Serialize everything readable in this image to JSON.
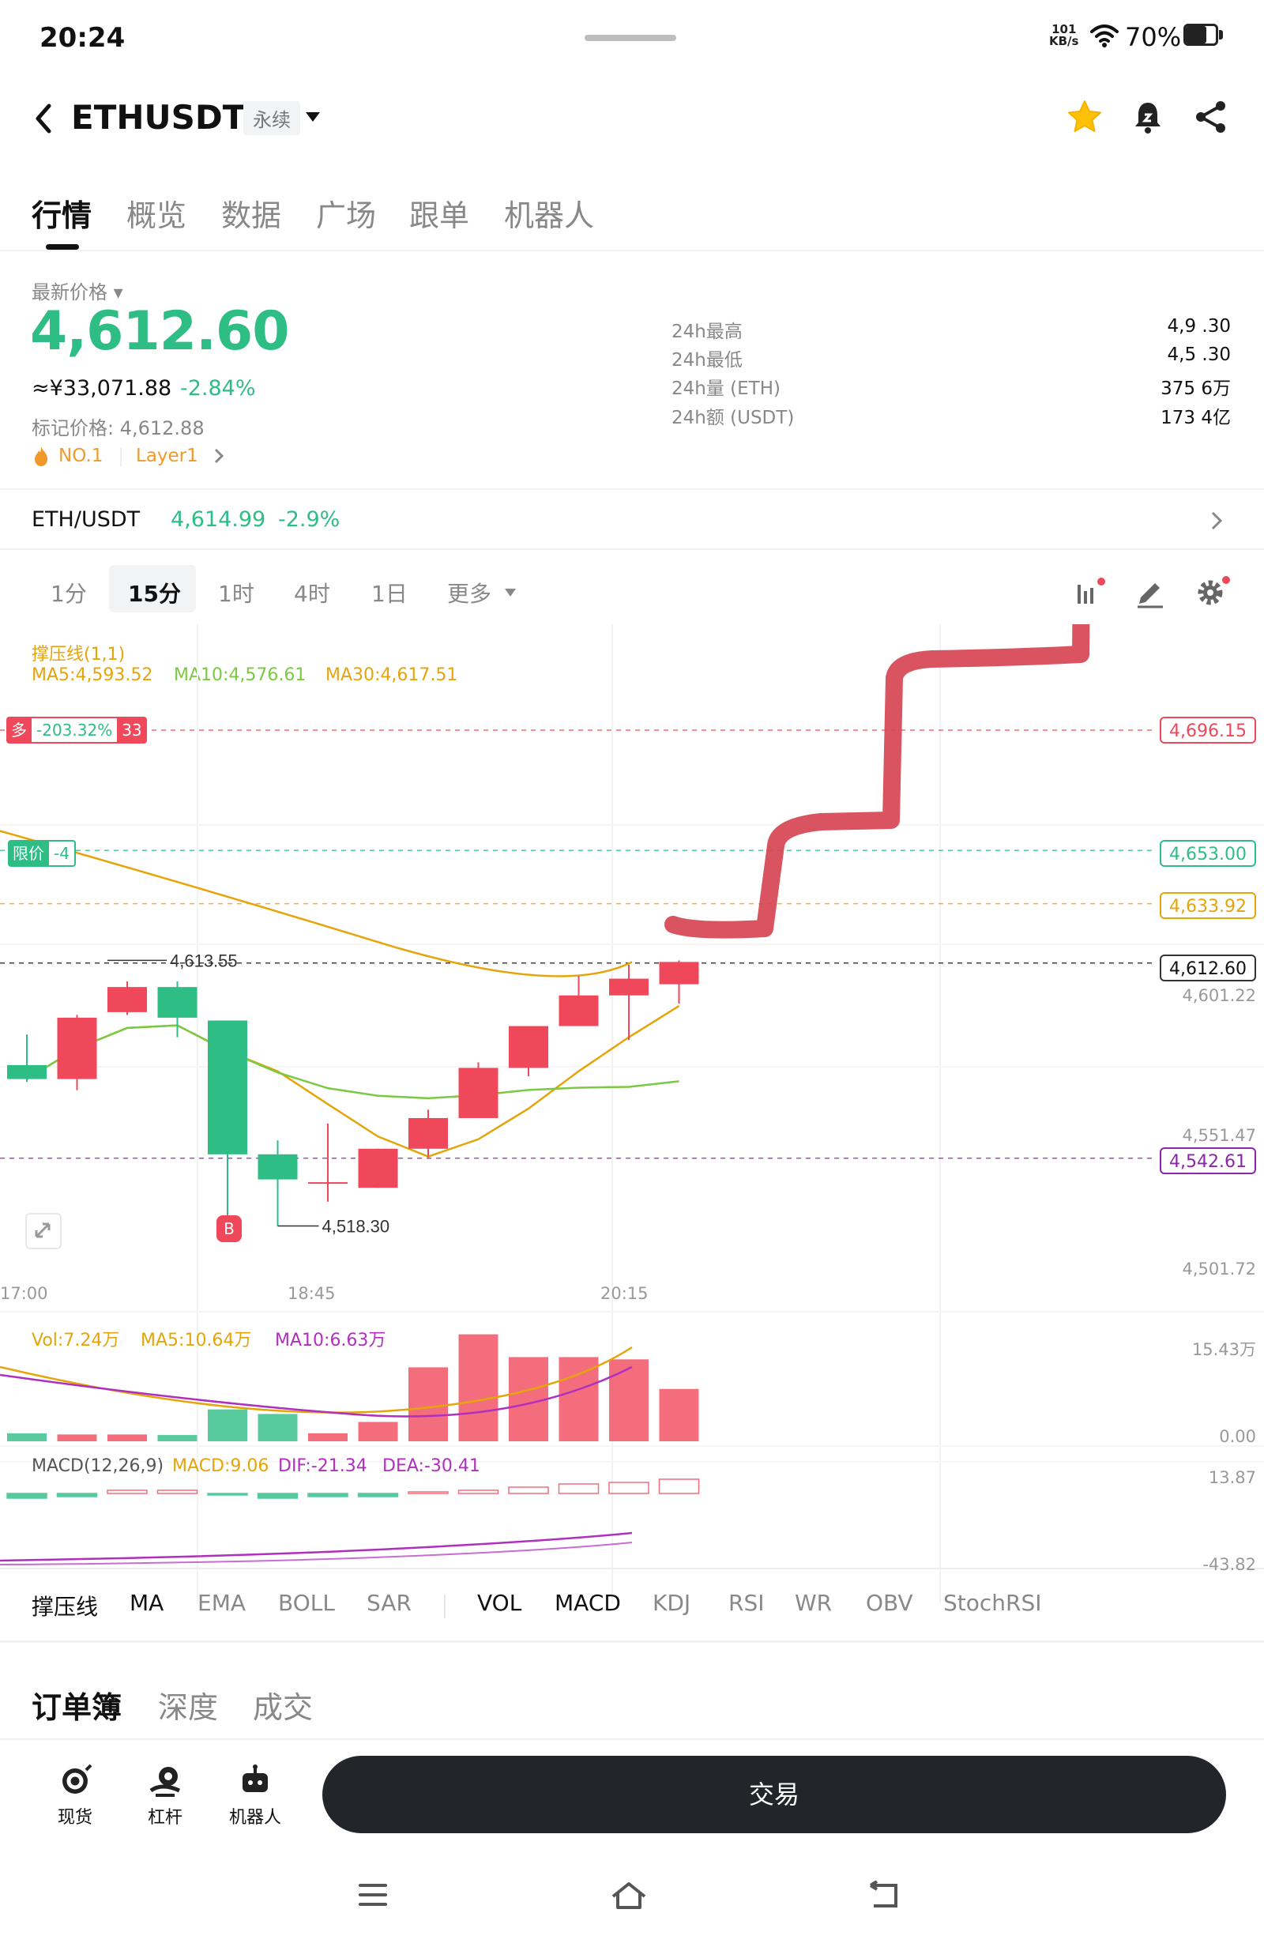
{
  "status_bar": {
    "time": "20:24",
    "net_speed": "101",
    "net_unit": "KB/s",
    "battery": "70%"
  },
  "header": {
    "pair": "ETHUSDT",
    "contract_type": "永续"
  },
  "tabs": [
    "行情",
    "概览",
    "数据",
    "广场",
    "跟单",
    "机器人"
  ],
  "ticker": {
    "latest_label": "最新价格",
    "last_price": "4,612.60",
    "cny_value": "≈¥33,071.88",
    "change_pct": "-2.84%",
    "mark_price": "标记价格: 4,612.88",
    "rank": "NO.1",
    "category": "Layer1",
    "stats": [
      {
        "label": "24h最高",
        "value": "4,9 .30"
      },
      {
        "label": "24h最低",
        "value": "4,5 .30"
      },
      {
        "label": "24h量 (ETH)",
        "value": "375 6万"
      },
      {
        "label": "24h额 (USDT)",
        "value": "173 4亿"
      }
    ]
  },
  "spot": {
    "pair": "ETH/USDT",
    "price": "4,614.99",
    "change": "-2.9%"
  },
  "intervals": [
    "1分",
    "15分",
    "1时",
    "4时",
    "1日",
    "更多"
  ],
  "active_interval": "15分",
  "legend": {
    "indicator": "撑压线(1,1)",
    "ma5": "MA5:4,593.52",
    "ma10": "MA10:4,576.61",
    "ma30": "MA30:4,617.51"
  },
  "chart_data": {
    "type": "candlestick",
    "interval": "15分",
    "x_ticks": [
      "17:00",
      "18:45",
      "20:15"
    ],
    "y_axis_labels": [
      "4,601.22",
      "4,551.47",
      "4,501.72"
    ],
    "ylim": [
      4490,
      4700
    ],
    "candles": [
      {
        "open": 4576,
        "high": 4587,
        "low": 4570,
        "close": 4571
      },
      {
        "open": 4571,
        "high": 4594,
        "low": 4567,
        "close": 4593
      },
      {
        "open": 4595,
        "high": 4606,
        "low": 4594,
        "close": 4604
      },
      {
        "open": 4604,
        "high": 4606,
        "low": 4586,
        "close": 4593
      },
      {
        "open": 4592,
        "high": 4592,
        "low": 4518.3,
        "close": 4544
      },
      {
        "open": 4544,
        "high": 4549,
        "low": 4518.3,
        "close": 4535
      },
      {
        "open": 4534,
        "high": 4555,
        "low": 4527,
        "close": 4534
      },
      {
        "open": 4532,
        "high": 4546,
        "low": 4532,
        "close": 4546
      },
      {
        "open": 4546,
        "high": 4560,
        "low": 4543,
        "close": 4557
      },
      {
        "open": 4557,
        "high": 4577,
        "low": 4557,
        "close": 4575
      },
      {
        "open": 4575,
        "high": 4590,
        "low": 4572,
        "close": 4590
      },
      {
        "open": 4590,
        "high": 4608,
        "low": 4590,
        "close": 4601
      },
      {
        "open": 4601,
        "high": 4612,
        "low": 4585,
        "close": 4607
      },
      {
        "open": 4605,
        "high": 4613.55,
        "low": 4598,
        "close": 4613
      }
    ],
    "annotations": {
      "high": "4,613.55",
      "low": "4,518.30"
    },
    "price_lines": [
      {
        "label": "4,696.15",
        "value": 4696.15,
        "color": "#f0485b"
      },
      {
        "label": "4,653.00",
        "value": 4653.0,
        "color": "#2ebd85"
      },
      {
        "label": "4,633.92",
        "value": 4633.92,
        "color": "#e5a50a"
      },
      {
        "label": "4,612.60",
        "value": 4612.6,
        "color": "#111111"
      },
      {
        "label": "4,542.61",
        "value": 4542.61,
        "color": "#8e24aa"
      }
    ],
    "volume_axis": [
      "15.43万",
      "0.00"
    ],
    "macd_axis": [
      "13.87",
      "-43.82"
    ]
  },
  "position_badge": {
    "side": "多",
    "pnl": "-203.32%",
    "qty": "33"
  },
  "limit_badge": {
    "label": "限价",
    "qty": "-4"
  },
  "buy_marker": "B",
  "volume_legend": {
    "vol": "Vol:7.24万",
    "ma5": "MA5:10.64万",
    "ma10": "MA10:6.63万"
  },
  "macd_legend": {
    "title": "MACD(12,26,9)",
    "macd": "MACD:9.06",
    "dif": "DIF:-21.34",
    "dea": "DEA:-30.41"
  },
  "indicator_tabs": [
    "撑压线",
    "MA",
    "EMA",
    "BOLL",
    "SAR",
    "VOL",
    "MACD",
    "KDJ",
    "RSI",
    "WR",
    "OBV",
    "StochRSI"
  ],
  "orderbook_tabs": [
    "订单簿",
    "深度",
    "成交"
  ],
  "bottom_bar": {
    "spot": "现货",
    "margin": "杠杆",
    "bot": "机器人",
    "trade": "交易"
  },
  "colors": {
    "up": "#2ebd85",
    "down": "#f0485b",
    "ma5": "#e5a50a",
    "ma10": "#7ac943",
    "ma30": "#e5a50a",
    "vol_ma10": "#b02fbf",
    "annotation_stroke": "#d64552"
  }
}
